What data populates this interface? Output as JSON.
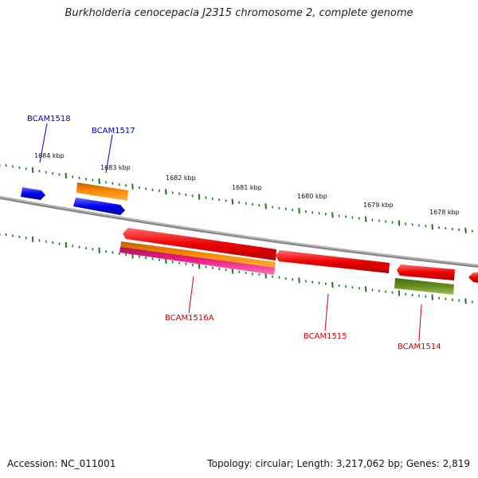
{
  "title": "Burkholderia cenocepacia J2315 chromosome 2, complete genome",
  "footer": {
    "accession": "Accession: NC_011001",
    "summary": "Topology: circular; Length: 3,217,062 bp; Genes: 2,819"
  },
  "scale_labels": [
    "1684 kbp",
    "1683 kbp",
    "1682 kbp",
    "1681 kbp",
    "1680 kbp",
    "1679 kbp",
    "1678 kbp"
  ],
  "gene_labels": {
    "bcam1518": "BCAM1518",
    "bcam1517": "BCAM1517",
    "bcam1516a": "BCAM1516A",
    "bcam1515": "BCAM1515",
    "bcam1514": "BCAM1514"
  },
  "colors": {
    "forward_cds": "#0000ee",
    "reverse_cds": "#ee0000",
    "orange_feature": "#ff8c00",
    "pink_feature": "#ee2288",
    "olive_feature": "#6b8e23",
    "backbone": "#888888",
    "ticks": "#1a7a1a"
  }
}
